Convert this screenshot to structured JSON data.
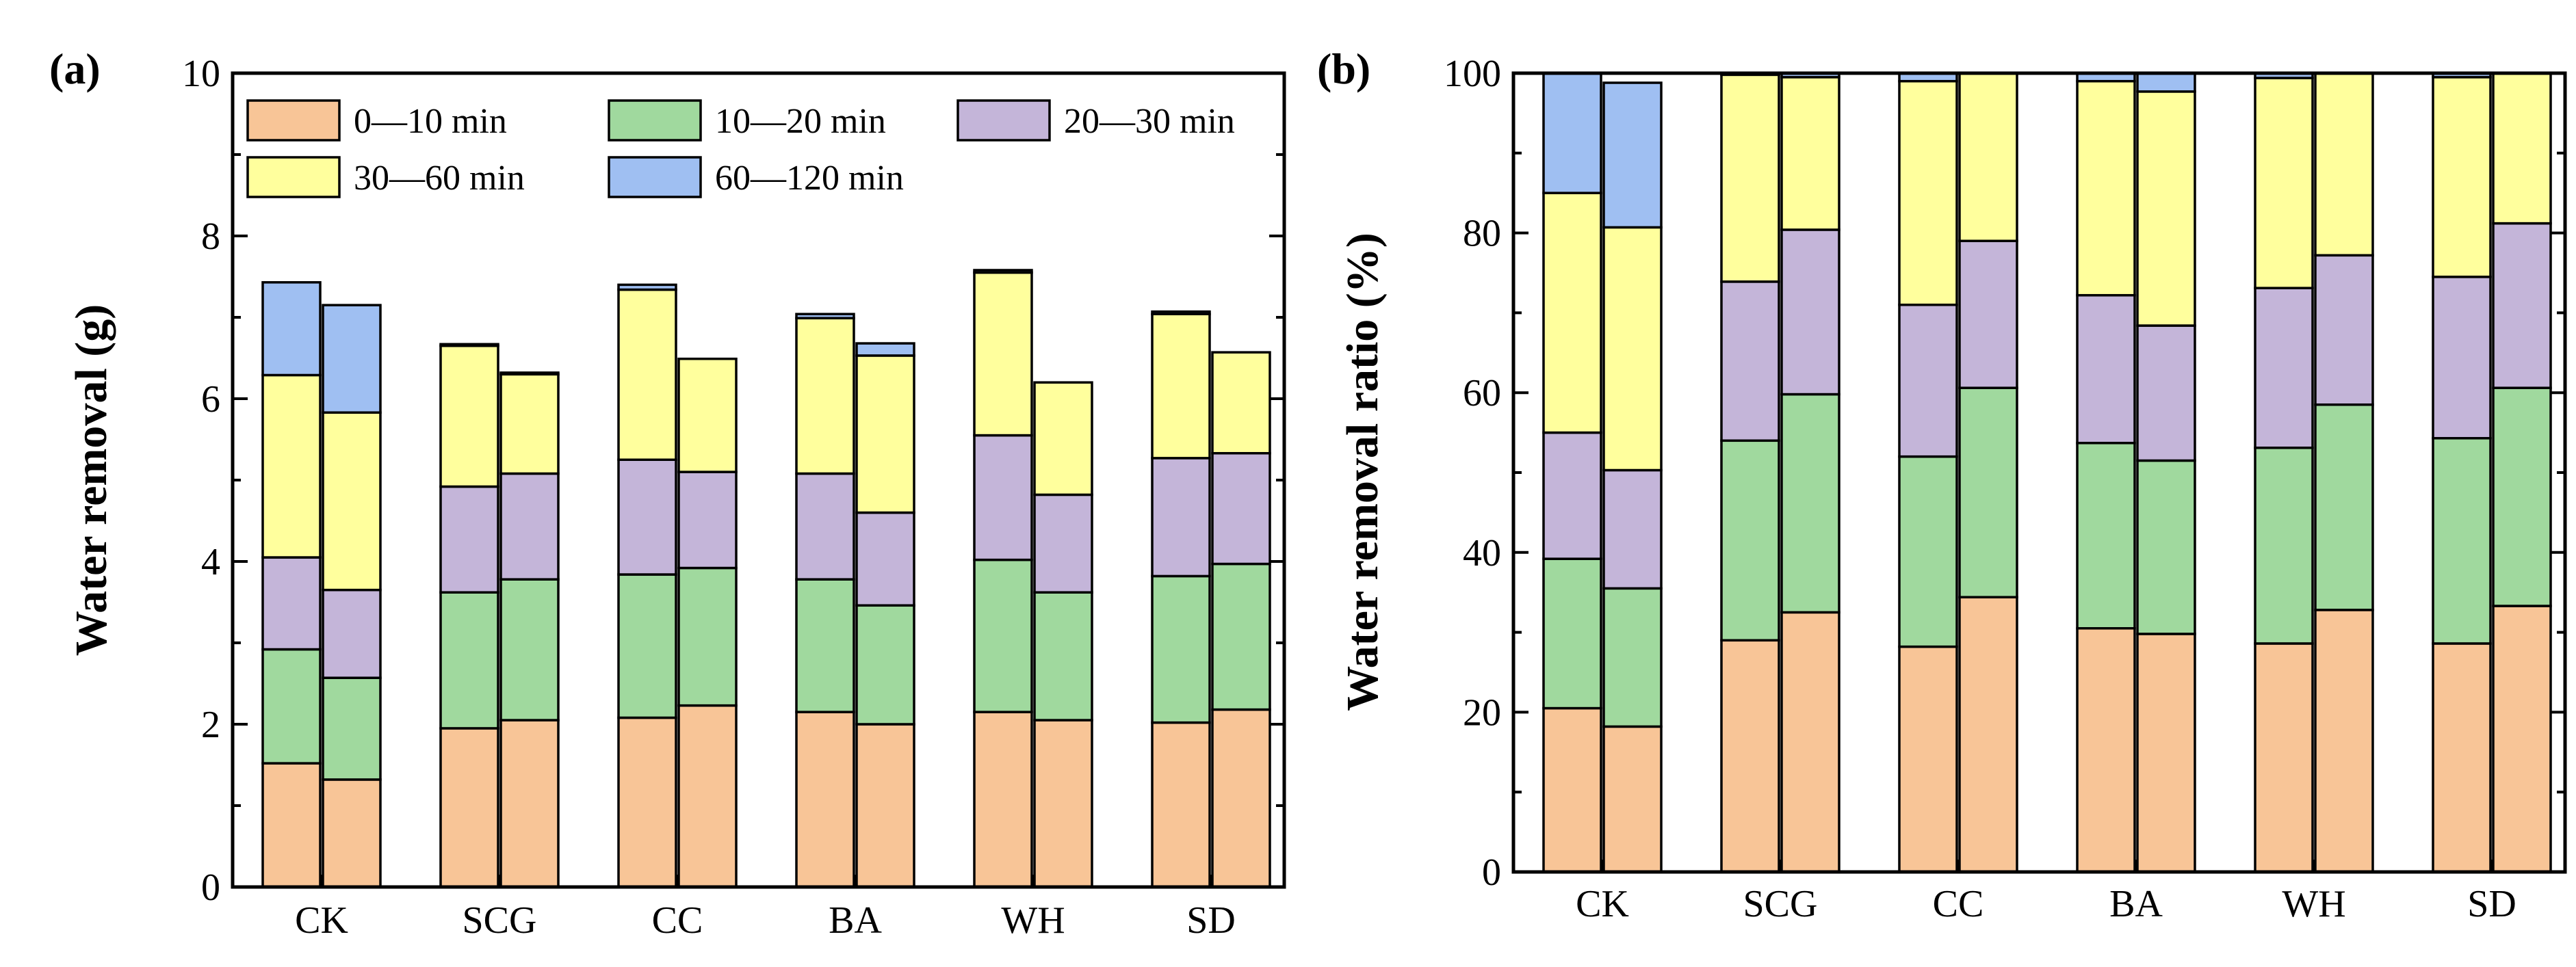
{
  "chart_data": [
    {
      "panel": "(a)",
      "type": "stacked-bar",
      "ylabel": "Water removal (g)",
      "xlabel": "",
      "ylim": [
        0,
        10
      ],
      "yticks": [
        "0",
        "2",
        "4",
        "6",
        "8",
        "10"
      ],
      "categories": [
        "CK",
        "SCG",
        "CC",
        "BA",
        "WH",
        "SD"
      ],
      "bars_per_category": 2,
      "legend_position": "top",
      "series": [
        {
          "name": "0—10 min",
          "color": "#f8c597",
          "values": [
            [
              1.52,
              1.32
            ],
            [
              1.95,
              2.05
            ],
            [
              2.08,
              2.23
            ],
            [
              2.15,
              2.0
            ],
            [
              2.15,
              2.05
            ],
            [
              2.02,
              2.18
            ]
          ]
        },
        {
          "name": "10—20 min",
          "color": "#a0d99e",
          "values": [
            [
              1.4,
              1.25
            ],
            [
              1.67,
              1.73
            ],
            [
              1.76,
              1.69
            ],
            [
              1.63,
              1.46
            ],
            [
              1.87,
              1.57
            ],
            [
              1.8,
              1.79
            ]
          ]
        },
        {
          "name": "20—30 min",
          "color": "#c4b5d9",
          "values": [
            [
              1.13,
              1.08
            ],
            [
              1.3,
              1.3
            ],
            [
              1.41,
              1.18
            ],
            [
              1.3,
              1.14
            ],
            [
              1.53,
              1.2
            ],
            [
              1.45,
              1.36
            ]
          ]
        },
        {
          "name": "30—60 min",
          "color": "#ffff9d",
          "values": [
            [
              2.24,
              2.18
            ],
            [
              1.73,
              1.22
            ],
            [
              2.09,
              1.39
            ],
            [
              1.91,
              1.93
            ],
            [
              2.0,
              1.38
            ],
            [
              1.77,
              1.24
            ]
          ]
        },
        {
          "name": "60—120 min",
          "color": "#9fbff2",
          "values": [
            [
              1.14,
              1.32
            ],
            [
              0.02,
              0.02
            ],
            [
              0.06,
              0.0
            ],
            [
              0.05,
              0.15
            ],
            [
              0.03,
              0.0
            ],
            [
              0.03,
              0.0
            ]
          ]
        }
      ]
    },
    {
      "panel": "(b)",
      "type": "stacked-bar",
      "ylabel": "Water removal ratio (%)",
      "xlabel": "",
      "ylim": [
        0,
        100
      ],
      "yticks": [
        "0",
        "20",
        "40",
        "60",
        "80",
        "100"
      ],
      "categories": [
        "CK",
        "SCG",
        "CC",
        "BA",
        "WH",
        "SD"
      ],
      "bars_per_category": 2,
      "series": [
        {
          "name": "0—10 min",
          "color": "#f8c597",
          "values": [
            [
              20.5,
              18.2
            ],
            [
              29.0,
              32.5
            ],
            [
              28.2,
              34.4
            ],
            [
              30.5,
              29.8
            ],
            [
              28.6,
              32.8
            ],
            [
              28.6,
              33.3
            ]
          ]
        },
        {
          "name": "10—20 min",
          "color": "#a0d99e",
          "values": [
            [
              18.7,
              17.3
            ],
            [
              25.0,
              27.3
            ],
            [
              23.8,
              26.2
            ],
            [
              23.2,
              21.7
            ],
            [
              24.5,
              25.7
            ],
            [
              25.7,
              27.3
            ]
          ]
        },
        {
          "name": "20—30 min",
          "color": "#c4b5d9",
          "values": [
            [
              15.8,
              14.8
            ],
            [
              19.9,
              20.6
            ],
            [
              19.0,
              18.4
            ],
            [
              18.5,
              16.9
            ],
            [
              20.0,
              18.7
            ],
            [
              20.2,
              20.6
            ]
          ]
        },
        {
          "name": "30—60 min",
          "color": "#ffff9d",
          "values": [
            [
              30.0,
              30.4
            ],
            [
              25.9,
              19.1
            ],
            [
              28.0,
              21.0
            ],
            [
              26.8,
              29.3
            ],
            [
              26.3,
              22.8
            ],
            [
              25.0,
              18.8
            ]
          ]
        },
        {
          "name": "60—120 min",
          "color": "#9fbff2",
          "values": [
            [
              15.0,
              18.1
            ],
            [
              0.2,
              0.5
            ],
            [
              1.0,
              0.0
            ],
            [
              1.0,
              2.3
            ],
            [
              0.6,
              0.0
            ],
            [
              0.5,
              0.0
            ]
          ]
        }
      ]
    }
  ]
}
